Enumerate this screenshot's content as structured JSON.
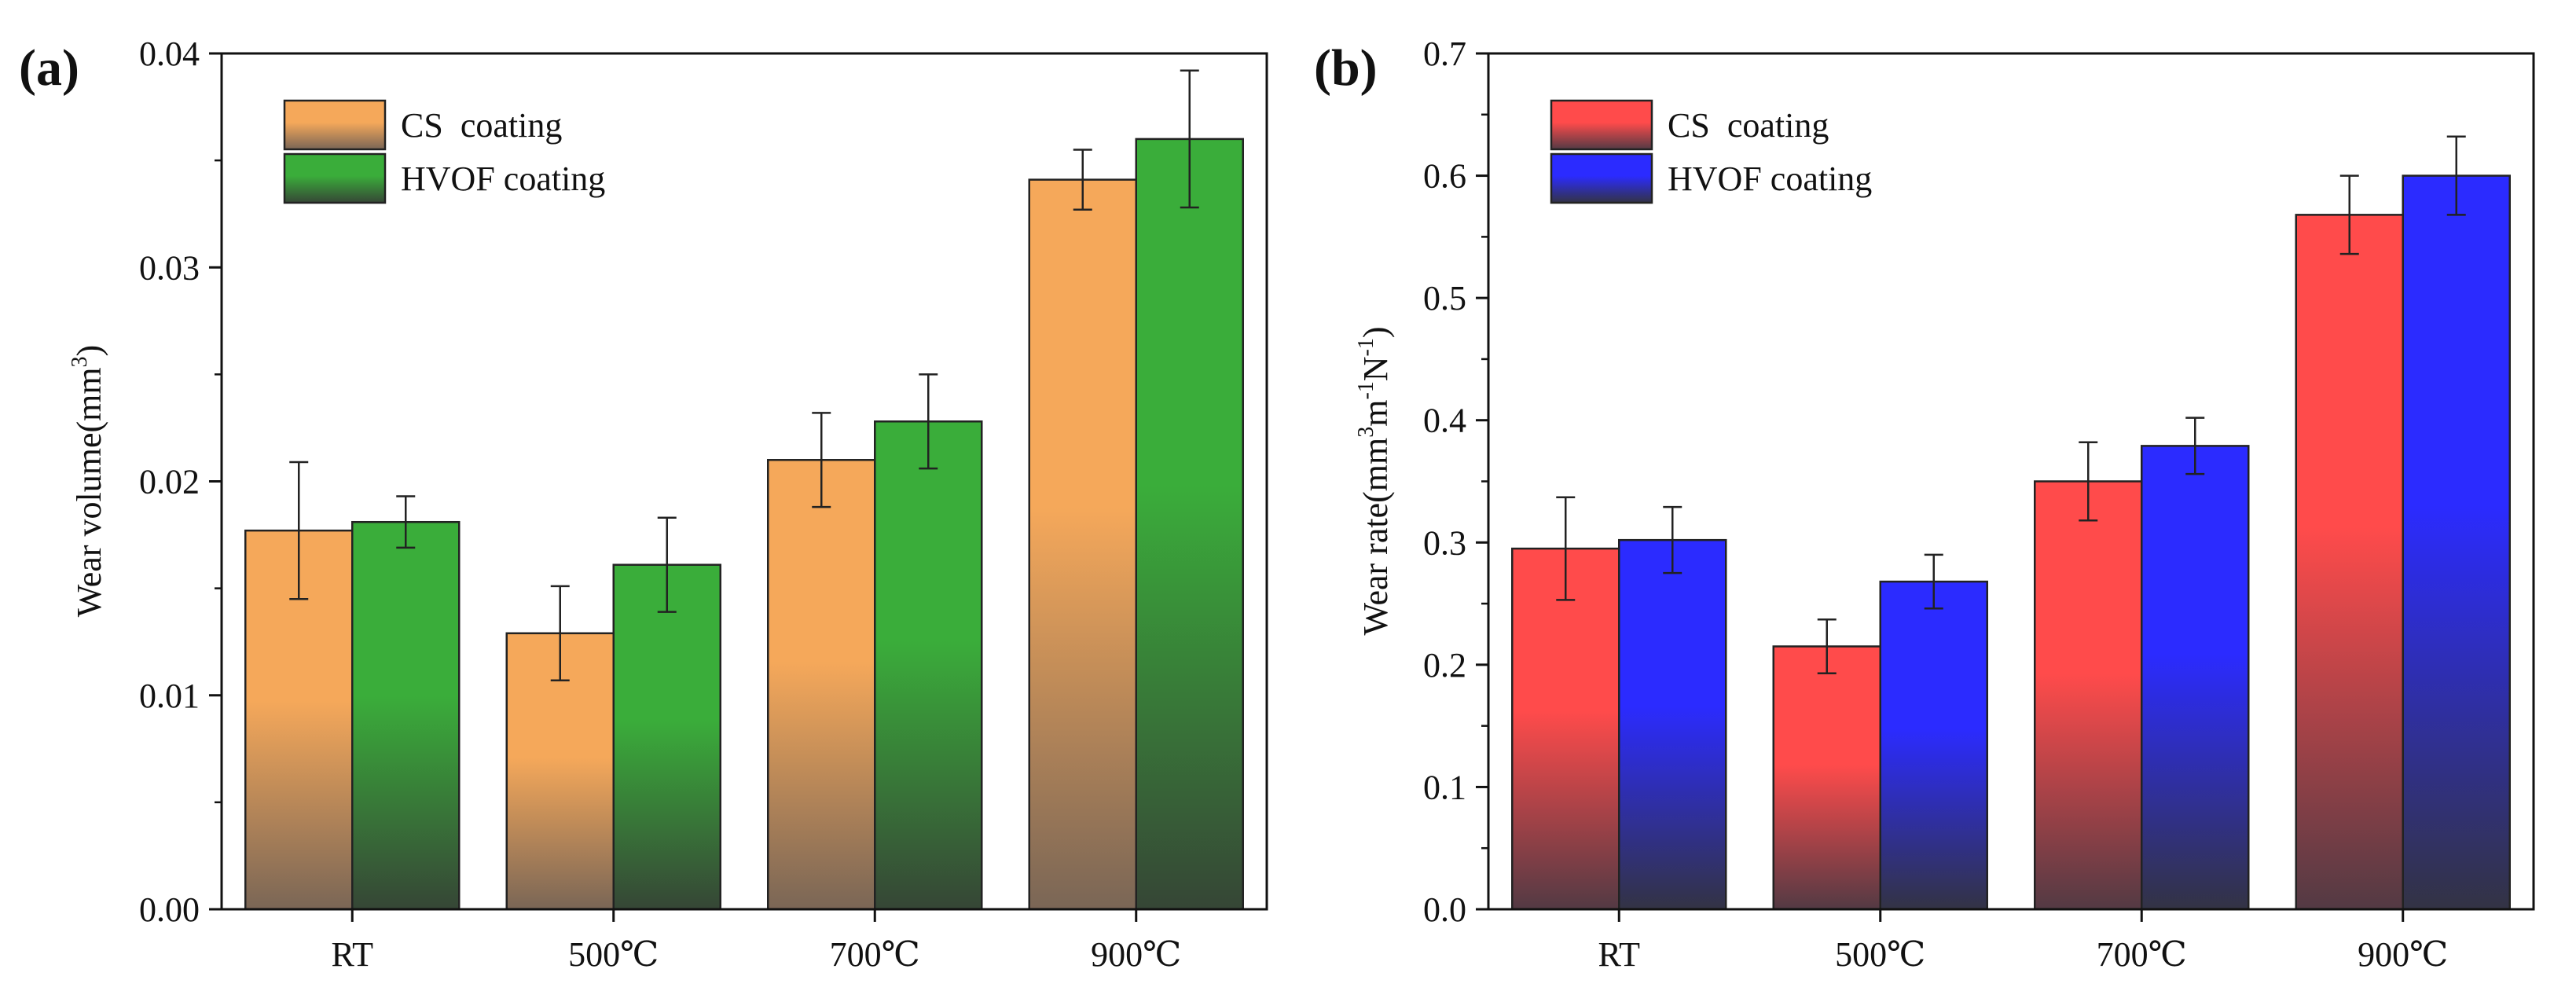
{
  "chart_data": [
    {
      "panel_label": "(a)",
      "type": "bar",
      "categories": [
        "RT",
        "500℃",
        "700℃",
        "900℃"
      ],
      "series": [
        {
          "name": "CS  coating",
          "values": [
            0.0177,
            0.0129,
            0.021,
            0.0341
          ],
          "errors": [
            0.0032,
            0.0022,
            0.0022,
            0.0014
          ],
          "color_top": "#F5A85A",
          "color_bottom": "#7A6656"
        },
        {
          "name": "HVOF coating",
          "values": [
            0.0181,
            0.0161,
            0.0228,
            0.036
          ],
          "errors": [
            0.0012,
            0.0022,
            0.0022,
            0.0032
          ],
          "color_top": "#3AAD3A",
          "color_bottom": "#364636"
        }
      ],
      "xlabel": "",
      "ylabel": "Wear volume(mm³)",
      "ylim": [
        0,
        0.04
      ],
      "yticks": [
        "0.00",
        "0.01",
        "0.02",
        "0.03",
        "0.04"
      ],
      "legend": "top-left",
      "grid": false
    },
    {
      "panel_label": "(b)",
      "type": "bar",
      "categories": [
        "RT",
        "500℃",
        "700℃",
        "900℃"
      ],
      "series": [
        {
          "name": "CS  coating",
          "values": [
            0.295,
            0.215,
            0.35,
            0.568
          ],
          "errors": [
            0.042,
            0.022,
            0.032,
            0.032
          ],
          "color_top": "#FF4B4B",
          "color_bottom": "#533A44"
        },
        {
          "name": "HVOF coating",
          "values": [
            0.302,
            0.268,
            0.379,
            0.6
          ],
          "errors": [
            0.027,
            0.022,
            0.023,
            0.032
          ],
          "color_top": "#2B2BFF",
          "color_bottom": "#333344"
        }
      ],
      "xlabel": "",
      "ylabel": "Wear rate(mm³m⁻¹N⁻¹)",
      "ylim": [
        0,
        0.7
      ],
      "yticks": [
        "0.0",
        "0.1",
        "0.2",
        "0.3",
        "0.4",
        "0.5",
        "0.6",
        "0.7"
      ],
      "legend": "top-left",
      "grid": false
    }
  ]
}
